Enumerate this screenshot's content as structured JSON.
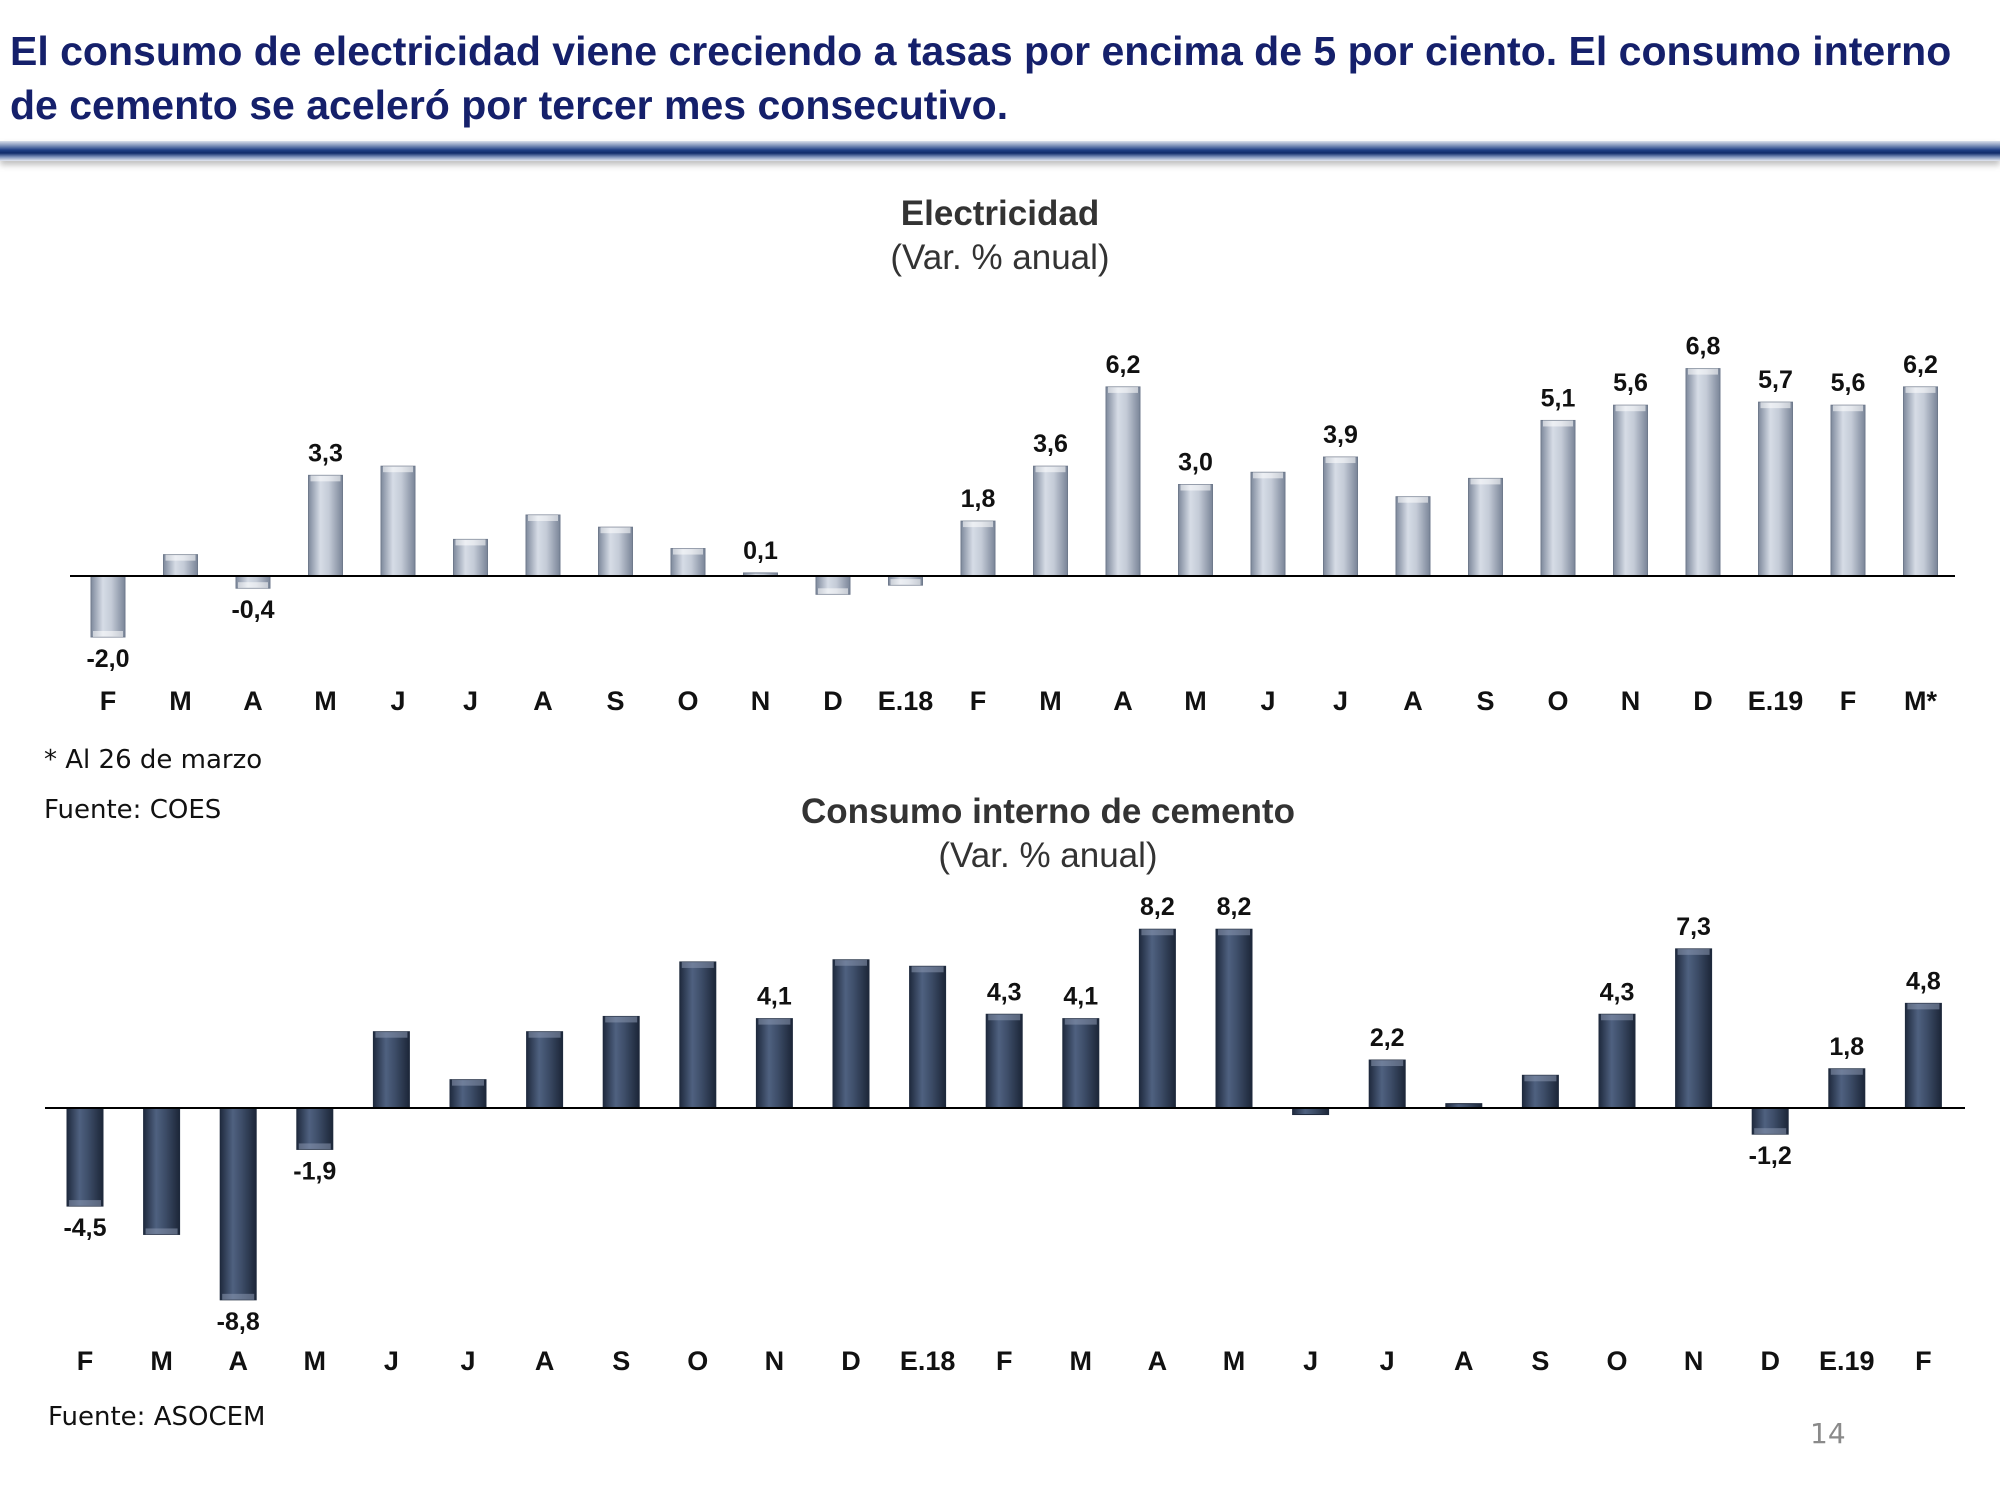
{
  "slide": {
    "title": "El consumo de electricidad viene creciendo a tasas por encima de 5 por ciento.  El consumo interno de cemento se aceleró por tercer mes consecutivo.",
    "page_number": "14"
  },
  "notes": {
    "elec_footnote": "* Al 26 de marzo",
    "elec_source": "Fuente: COES",
    "cement_source": "Fuente: ASOCEM"
  },
  "colors": {
    "title": "#15206b",
    "elec_bar": "#aeb8c8",
    "cement_bar": "#3d4d66"
  },
  "chart_data": [
    {
      "type": "bar",
      "title": "Electricidad",
      "subtitle": "(Var. % anual)",
      "xlabel": "",
      "ylabel": "",
      "ylim": [
        -2.5,
        7.5
      ],
      "categories": [
        "F",
        "M",
        "A",
        "M",
        "J",
        "J",
        "A",
        "S",
        "O",
        "N",
        "D",
        "E.18",
        "F",
        "M",
        "A",
        "M",
        "J",
        "J",
        "A",
        "S",
        "O",
        "N",
        "D",
        "E.19",
        "F",
        "M*"
      ],
      "values": [
        -2.0,
        0.7,
        -0.4,
        3.3,
        3.6,
        1.2,
        2.0,
        1.6,
        0.9,
        0.1,
        -0.6,
        -0.3,
        1.8,
        3.6,
        6.2,
        3.0,
        3.4,
        3.9,
        2.6,
        3.2,
        5.1,
        5.6,
        6.8,
        5.7,
        5.6,
        6.2
      ],
      "labels": [
        "-2,0",
        "",
        "-0,4",
        "3,3",
        "",
        "",
        "",
        "",
        "",
        "0,1",
        "",
        "",
        "1,8",
        "3,6",
        "6,2",
        "3,0",
        "",
        "3,9",
        "",
        "",
        "5,1",
        "5,6",
        "6,8",
        "5,7",
        "5,6",
        "6,2"
      ]
    },
    {
      "type": "bar",
      "title": "Consumo interno de cemento",
      "subtitle": "(Var. % anual)",
      "xlabel": "",
      "ylabel": "",
      "ylim": [
        -9.5,
        9.5
      ],
      "categories": [
        "F",
        "M",
        "A",
        "M",
        "J",
        "J",
        "A",
        "S",
        "O",
        "N",
        "D",
        "E.18",
        "F",
        "M",
        "A",
        "M",
        "J",
        "J",
        "A",
        "S",
        "O",
        "N",
        "D",
        "E.19",
        "F"
      ],
      "values": [
        -4.5,
        -5.8,
        -8.8,
        -1.9,
        3.5,
        1.3,
        3.5,
        4.2,
        6.7,
        4.1,
        6.8,
        6.5,
        4.3,
        4.1,
        8.2,
        8.2,
        -0.3,
        2.2,
        0.2,
        1.5,
        4.3,
        7.3,
        -1.2,
        1.8,
        4.8
      ],
      "labels": [
        "-4,5",
        "",
        "-8,8",
        "-1,9",
        "",
        "",
        "",
        "",
        "",
        "4,1",
        "",
        "",
        "4,3",
        "4,1",
        "8,2",
        "8,2",
        "",
        "2,2",
        "",
        "",
        "4,3",
        "7,3",
        "-1,2",
        "1,8",
        "4,8"
      ]
    }
  ]
}
